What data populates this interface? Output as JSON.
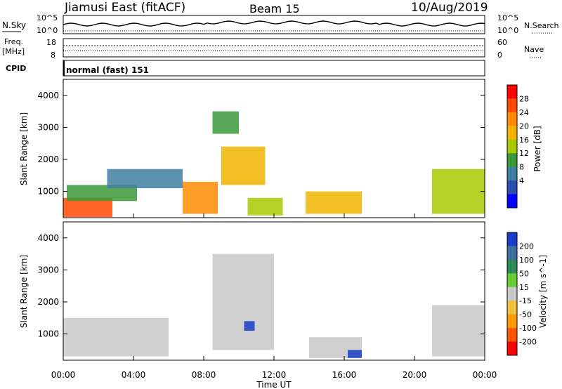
{
  "header": {
    "station": "Jiamusi East (fitACF)",
    "beam": "Beam 15",
    "date": "10/Aug/2019"
  },
  "noise_panel": {
    "left_label": "N.Sky",
    "right_label": "N.Search",
    "tick_top": "10^5",
    "tick_bottom": "10^0"
  },
  "freq_panel": {
    "left_label_1": "Freq.",
    "left_label_2": "[MHz]",
    "tick_top": "18",
    "tick_bottom": "8",
    "right_label": "Nave",
    "right_tick_top": "60",
    "right_tick_bottom": "0"
  },
  "cpid_panel": {
    "label": "CPID",
    "text": "normal (fast) 151"
  },
  "x_axis": {
    "label": "Time UT",
    "ticks": [
      "00:00",
      "04:00",
      "08:00",
      "12:00",
      "16:00",
      "20:00",
      "00:00"
    ]
  },
  "power_panel": {
    "ylabel": "Slant Range [km]",
    "yticks": [
      "4000",
      "3000",
      "2000",
      "1000"
    ],
    "colorbar_label": "Power [dB]",
    "colorbar_ticks": [
      "28",
      "24",
      "20",
      "16",
      "12",
      "8",
      "4"
    ],
    "colorbar_colors": [
      "#ff0000",
      "#ff4a00",
      "#ff8c00",
      "#f0b400",
      "#a8c800",
      "#3a9a3a",
      "#3f7f9f",
      "#2a4fb0",
      "#0000ff"
    ]
  },
  "velocity_panel": {
    "ylabel": "Slant Range [km]",
    "yticks": [
      "4000",
      "3000",
      "2000",
      "1000"
    ],
    "colorbar_label": "Velocity [m s^-1]",
    "colorbar_ticks": [
      "200",
      "100",
      "50",
      "15",
      "-15",
      "-50",
      "-100",
      "-200"
    ],
    "colorbar_colors": [
      "#1a3cc8",
      "#3f6fa0",
      "#2e8b57",
      "#66cc33",
      "#c8c8c8",
      "#f0c040",
      "#ff9900",
      "#ff5500",
      "#ff0000"
    ]
  },
  "chart_data": {
    "type": "heatmap",
    "x_range_hours": [
      0,
      24
    ],
    "y_range_km": [
      180,
      4500
    ],
    "power_regions": [
      {
        "t0": 0.0,
        "t1": 2.8,
        "r0": 200,
        "r1": 800,
        "level": 26
      },
      {
        "t0": 0.2,
        "t1": 4.2,
        "r0": 700,
        "r1": 1200,
        "level": 10
      },
      {
        "t0": 2.5,
        "t1": 6.8,
        "r0": 1100,
        "r1": 1700,
        "level": 8
      },
      {
        "t0": 6.8,
        "t1": 8.8,
        "r0": 300,
        "r1": 1300,
        "level": 24
      },
      {
        "t0": 8.5,
        "t1": 10.0,
        "r0": 2800,
        "r1": 3500,
        "level": 10
      },
      {
        "t0": 9.0,
        "t1": 11.5,
        "r0": 1200,
        "r1": 2400,
        "level": 18
      },
      {
        "t0": 10.5,
        "t1": 12.5,
        "r0": 250,
        "r1": 800,
        "level": 14
      },
      {
        "t0": 13.8,
        "t1": 17.0,
        "r0": 300,
        "r1": 1000,
        "level": 18
      },
      {
        "t0": 21.0,
        "t1": 24.0,
        "r0": 300,
        "r1": 1700,
        "level": 14
      }
    ],
    "velocity_regions": [
      {
        "t0": 0.0,
        "t1": 6.0,
        "r0": 300,
        "r1": 1500,
        "level": 0
      },
      {
        "t0": 8.5,
        "t1": 12.0,
        "r0": 500,
        "r1": 3500,
        "level": 0
      },
      {
        "t0": 10.3,
        "t1": 10.9,
        "r0": 1100,
        "r1": 1400,
        "level": 30
      },
      {
        "t0": 14.0,
        "t1": 17.0,
        "r0": 250,
        "r1": 900,
        "level": 0
      },
      {
        "t0": 16.2,
        "t1": 17.0,
        "r0": 250,
        "r1": 500,
        "level": 30
      },
      {
        "t0": 21.0,
        "t1": 24.0,
        "r0": 300,
        "r1": 1900,
        "level": 0
      }
    ]
  }
}
